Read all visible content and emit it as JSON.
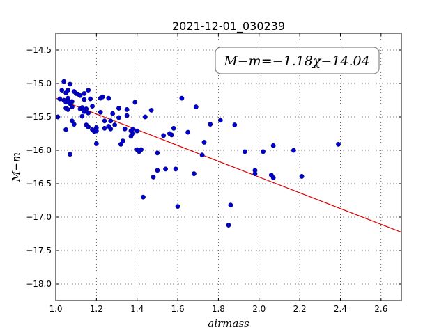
{
  "chart_data": {
    "type": "scatter",
    "title": "2021-12-01_030239",
    "xlabel": "airmass",
    "ylabel": "M−m",
    "xlim": [
      1.0,
      2.7
    ],
    "ylim": [
      -18.25,
      -14.25
    ],
    "xticks": [
      1.0,
      1.2,
      1.4,
      1.6,
      1.8,
      2.0,
      2.2,
      2.4,
      2.6
    ],
    "xtick_labels": [
      "1.0",
      "1.2",
      "1.4",
      "1.6",
      "1.8",
      "2.0",
      "2.2",
      "2.4",
      "2.6"
    ],
    "yticks": [
      -14.5,
      -15.0,
      -15.5,
      -16.0,
      -16.5,
      -17.0,
      -17.5,
      -18.0
    ],
    "ytick_labels": [
      "−14.5",
      "−15.0",
      "−15.5",
      "−16.0",
      "−16.5",
      "−17.0",
      "−17.5",
      "−18.0"
    ],
    "grid": true,
    "annotation": "M−m=−1.18χ−14.04",
    "fit": {
      "slope": -1.18,
      "intercept": -14.04,
      "color": "#dd0000"
    },
    "point_color": "#0000cc",
    "points": [
      [
        1.01,
        -15.5
      ],
      [
        1.02,
        -15.23
      ],
      [
        1.03,
        -15.1
      ],
      [
        1.04,
        -14.97
      ],
      [
        1.04,
        -15.25
      ],
      [
        1.05,
        -15.14
      ],
      [
        1.05,
        -15.28
      ],
      [
        1.05,
        -15.37
      ],
      [
        1.05,
        -15.69
      ],
      [
        1.06,
        -15.1
      ],
      [
        1.06,
        -15.22
      ],
      [
        1.06,
        -15.26
      ],
      [
        1.06,
        -15.39
      ],
      [
        1.07,
        -15.01
      ],
      [
        1.07,
        -15.3
      ],
      [
        1.08,
        -15.27
      ],
      [
        1.08,
        -15.35
      ],
      [
        1.07,
        -16.06
      ],
      [
        1.08,
        -15.56
      ],
      [
        1.09,
        -15.12
      ],
      [
        1.09,
        -15.61
      ],
      [
        1.1,
        -15.15
      ],
      [
        1.11,
        -15.16
      ],
      [
        1.12,
        -15.18
      ],
      [
        1.12,
        -15.38
      ],
      [
        1.13,
        -15.36
      ],
      [
        1.13,
        -15.49
      ],
      [
        1.14,
        -15.15
      ],
      [
        1.14,
        -15.24
      ],
      [
        1.14,
        -15.42
      ],
      [
        1.15,
        -15.38
      ],
      [
        1.15,
        -15.62
      ],
      [
        1.16,
        -15.1
      ],
      [
        1.16,
        -15.44
      ],
      [
        1.16,
        -15.65
      ],
      [
        1.17,
        -15.23
      ],
      [
        1.18,
        -15.34
      ],
      [
        1.18,
        -15.69
      ],
      [
        1.19,
        -15.72
      ],
      [
        1.2,
        -15.66
      ],
      [
        1.2,
        -15.71
      ],
      [
        1.2,
        -15.9
      ],
      [
        1.22,
        -15.22
      ],
      [
        1.22,
        -15.43
      ],
      [
        1.23,
        -15.2
      ],
      [
        1.24,
        -15.56
      ],
      [
        1.24,
        -15.67
      ],
      [
        1.26,
        -15.22
      ],
      [
        1.26,
        -15.64
      ],
      [
        1.27,
        -15.56
      ],
      [
        1.27,
        -15.68
      ],
      [
        1.28,
        -15.45
      ],
      [
        1.29,
        -15.62
      ],
      [
        1.31,
        -15.37
      ],
      [
        1.31,
        -15.51
      ],
      [
        1.32,
        -15.91
      ],
      [
        1.33,
        -15.86
      ],
      [
        1.34,
        -15.68
      ],
      [
        1.35,
        -15.39
      ],
      [
        1.35,
        -15.48
      ],
      [
        1.37,
        -15.71
      ],
      [
        1.37,
        -15.79
      ],
      [
        1.38,
        -15.68
      ],
      [
        1.38,
        -15.75
      ],
      [
        1.39,
        -15.28
      ],
      [
        1.4,
        -15.71
      ],
      [
        1.4,
        -15.99
      ],
      [
        1.41,
        -16.02
      ],
      [
        1.42,
        -15.99
      ],
      [
        1.43,
        -16.7
      ],
      [
        1.44,
        -15.5
      ],
      [
        1.47,
        -15.4
      ],
      [
        1.48,
        -16.4
      ],
      [
        1.5,
        -16.04
      ],
      [
        1.5,
        -16.3
      ],
      [
        1.53,
        -15.78
      ],
      [
        1.54,
        -16.28
      ],
      [
        1.56,
        -15.75
      ],
      [
        1.57,
        -15.77
      ],
      [
        1.58,
        -15.67
      ],
      [
        1.59,
        -16.28
      ],
      [
        1.6,
        -16.84
      ],
      [
        1.62,
        -15.22
      ],
      [
        1.65,
        -15.73
      ],
      [
        1.68,
        -16.35
      ],
      [
        1.69,
        -15.35
      ],
      [
        1.72,
        -16.07
      ],
      [
        1.73,
        -15.88
      ],
      [
        1.76,
        -15.61
      ],
      [
        1.81,
        -15.55
      ],
      [
        1.85,
        -17.12
      ],
      [
        1.86,
        -16.82
      ],
      [
        1.88,
        -15.62
      ],
      [
        1.93,
        -16.02
      ],
      [
        1.98,
        -16.35
      ],
      [
        1.98,
        -16.3
      ],
      [
        2.02,
        -16.02
      ],
      [
        2.06,
        -16.37
      ],
      [
        2.07,
        -16.41
      ],
      [
        2.07,
        -15.93
      ],
      [
        2.17,
        -16.0
      ],
      [
        2.21,
        -16.39
      ],
      [
        2.39,
        -15.91
      ]
    ]
  }
}
